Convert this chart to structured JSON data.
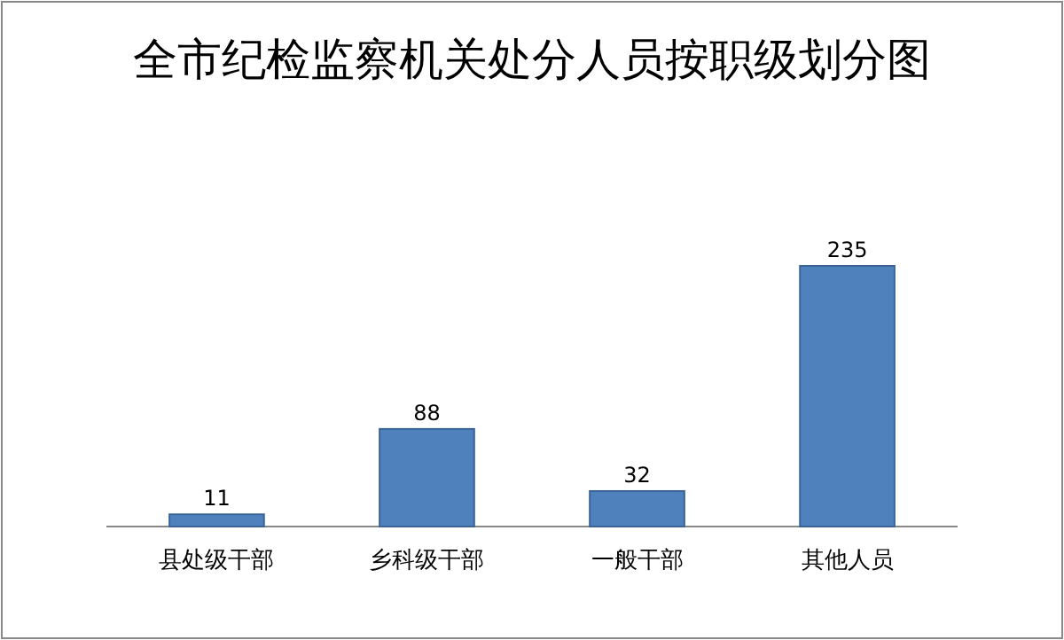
{
  "chart_data": {
    "type": "bar",
    "title": "全市纪检监察机关处分人员按职级划分图",
    "categories": [
      "县处级干部",
      "乡科级干部",
      "一般干部",
      "其他人员"
    ],
    "values": [
      11,
      88,
      32,
      235
    ],
    "color": "#4f81bd",
    "data_labels": true
  }
}
